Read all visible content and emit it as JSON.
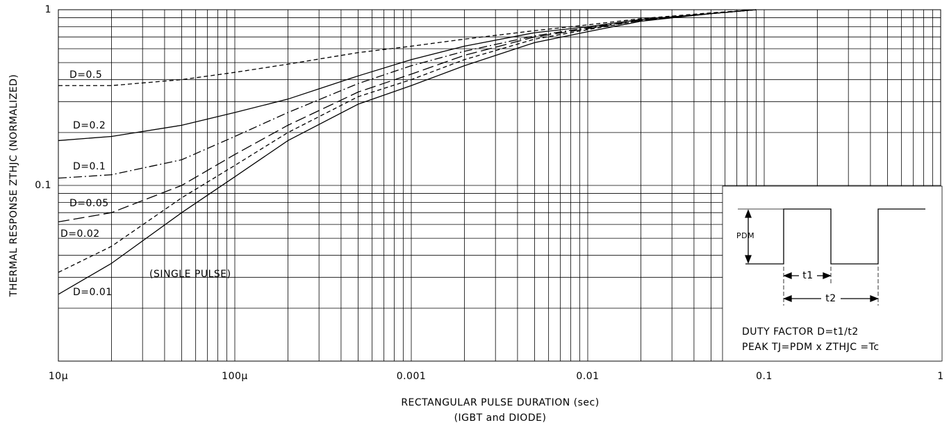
{
  "chart_data": {
    "type": "line",
    "xlabel": "RECTANGULAR PULSE DURATION (sec)",
    "xlabel_note": "(IGBT and DIODE)",
    "ylabel": "THERMAL RESPONSE ZTHJC (NORMALIZED)",
    "xlog": true,
    "ylog": true,
    "grid": true,
    "xlim": [
      1e-05,
      1
    ],
    "ylim": [
      0.01,
      1
    ],
    "xticks": [
      {
        "value": 1e-05,
        "label": "10µ"
      },
      {
        "value": 0.0001,
        "label": "100µ"
      },
      0.001,
      0.01,
      0.1,
      1
    ],
    "yticks": [
      0.1,
      1
    ],
    "x": [
      1e-05,
      2e-05,
      5e-05,
      0.0001,
      0.0002,
      0.0005,
      0.001,
      0.002,
      0.005,
      0.01,
      0.02,
      0.05,
      0.09
    ],
    "series": [
      {
        "name": "D=0.5",
        "color": "#000000",
        "style": "dashed",
        "values": [
          0.37,
          0.37,
          0.4,
          0.44,
          0.49,
          0.57,
          0.62,
          0.68,
          0.76,
          0.82,
          0.89,
          0.96,
          1.0
        ]
      },
      {
        "name": "D=0.2",
        "color": "#000000",
        "style": "solid",
        "values": [
          0.18,
          0.19,
          0.22,
          0.26,
          0.31,
          0.42,
          0.52,
          0.62,
          0.74,
          0.8,
          0.88,
          0.95,
          1.0
        ]
      },
      {
        "name": "D=0.1",
        "color": "#000000",
        "style": "dashdot",
        "values": [
          0.11,
          0.115,
          0.14,
          0.19,
          0.26,
          0.38,
          0.48,
          0.58,
          0.71,
          0.79,
          0.88,
          0.95,
          1.0
        ]
      },
      {
        "name": "D=0.05",
        "color": "#000000",
        "style": "longdash",
        "values": [
          0.062,
          0.07,
          0.1,
          0.15,
          0.22,
          0.34,
          0.43,
          0.55,
          0.7,
          0.78,
          0.87,
          0.95,
          1.0
        ]
      },
      {
        "name": "D=0.02",
        "color": "#000000",
        "style": "dashed",
        "values": [
          0.032,
          0.045,
          0.085,
          0.13,
          0.2,
          0.32,
          0.4,
          0.52,
          0.68,
          0.77,
          0.87,
          0.95,
          1.0
        ]
      },
      {
        "name": "D=0.01",
        "color": "#000000",
        "style": "solid",
        "values": [
          0.024,
          0.036,
          0.07,
          0.112,
          0.18,
          0.29,
          0.37,
          0.48,
          0.65,
          0.75,
          0.86,
          0.95,
          1.0
        ]
      }
    ],
    "annotations": {
      "single_pulse": "(SINGLE PULSE)",
      "pdm": "PDM",
      "t1": "t1",
      "t2": "t2",
      "duty": "DUTY FACTOR D=t1/t2",
      "peak": "PEAK TJ=PDM x ZTHJC =Tc"
    }
  }
}
